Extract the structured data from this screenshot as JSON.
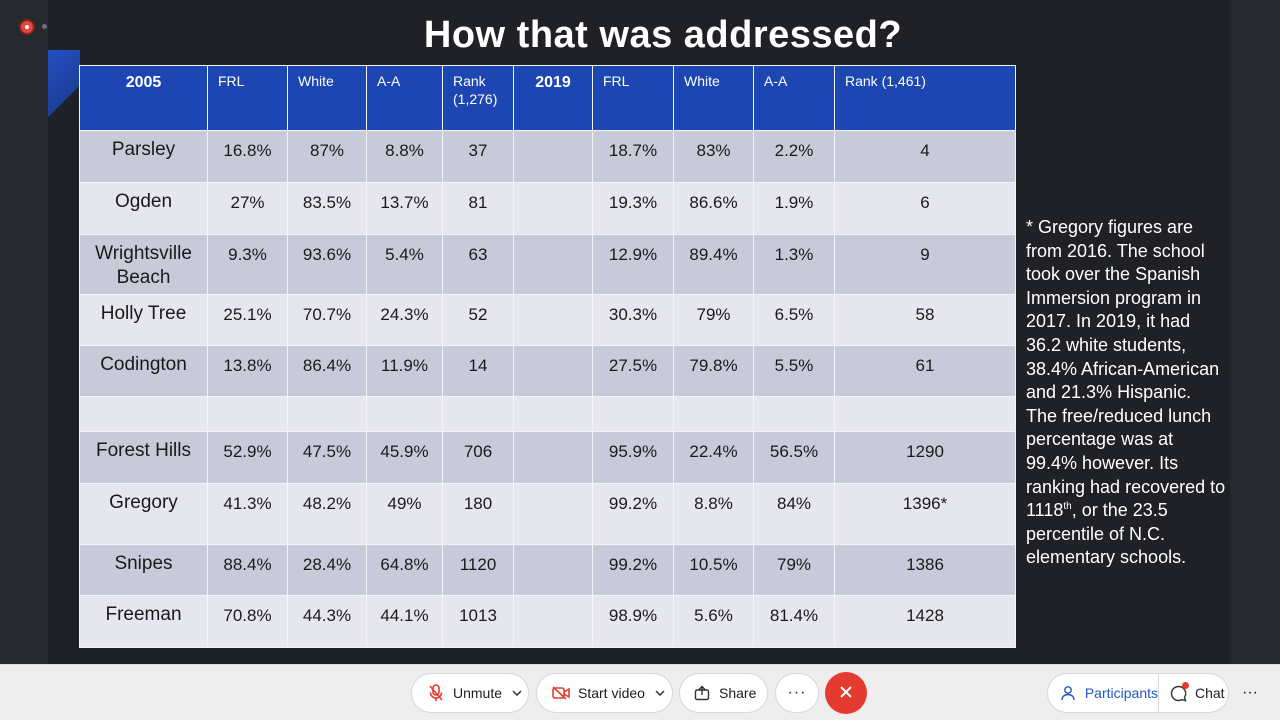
{
  "slide": {
    "title": "How that was addressed?",
    "table": {
      "headers": [
        "2005",
        "FRL",
        "White",
        "A-A",
        "Rank (1,276)",
        "2019",
        "FRL",
        "White",
        "A-A",
        "Rank (1,461)"
      ],
      "rows": [
        [
          "Parsley",
          "16.8%",
          "87%",
          "8.8%",
          "37",
          "",
          "18.7%",
          "83%",
          "2.2%",
          "4"
        ],
        [
          "Ogden",
          "27%",
          "83.5%",
          "13.7%",
          "81",
          "",
          "19.3%",
          "86.6%",
          "1.9%",
          "6"
        ],
        [
          "Wrightsville Beach",
          "9.3%",
          "93.6%",
          "5.4%",
          "63",
          "",
          "12.9%",
          "89.4%",
          "1.3%",
          "9"
        ],
        [
          "Holly Tree",
          "25.1%",
          "70.7%",
          "24.3%",
          "52",
          "",
          "30.3%",
          "79%",
          "6.5%",
          "58"
        ],
        [
          "Codington",
          "13.8%",
          "86.4%",
          "11.9%",
          "14",
          "",
          "27.5%",
          "79.8%",
          "5.5%",
          "61"
        ],
        [
          "",
          "",
          "",
          "",
          "",
          "",
          "",
          "",
          "",
          ""
        ],
        [
          "Forest Hills",
          "52.9%",
          "47.5%",
          "45.9%",
          "706",
          "",
          "95.9%",
          "22.4%",
          "56.5%",
          "1290"
        ],
        [
          "Gregory",
          "41.3%",
          "48.2%",
          "49%",
          "180",
          "",
          "99.2%",
          "8.8%",
          "84%",
          "1396*"
        ],
        [
          "Snipes",
          "88.4%",
          "28.4%",
          "64.8%",
          "1120",
          "",
          "99.2%",
          "10.5%",
          "79%",
          "1386"
        ],
        [
          "Freeman",
          "70.8%",
          "44.3%",
          "44.1%",
          "1013",
          "",
          "98.9%",
          "5.6%",
          "81.4%",
          "1428"
        ]
      ]
    },
    "note": {
      "text_before": "* Gregory figures are from 2016. The school took over the Spanish Immersion program in 2017. In 2019, it had 36.2 white students, 38.4% African-American and 21.3% Hispanic. The free/reduced lunch percentage was at 99.4% however. Its ranking had recovered to 1118",
      "superscript": "th",
      "text_after": ", or the 23.5 percentile of N.C. elementary schools."
    }
  },
  "toolbar": {
    "unmute_label": "Unmute",
    "start_video_label": "Start video",
    "share_label": "Share",
    "more_label": "···",
    "participants_label": "Participants",
    "chat_label": "Chat",
    "overflow_label": "···"
  },
  "colors": {
    "header_blue": "#1d46b3",
    "row_dark": "#c8cad9",
    "row_light": "#e5e6ee",
    "end_red": "#e53a2f",
    "participants_blue": "#2256c5"
  },
  "icons": [
    "recording-icon",
    "mic-muted-icon",
    "video-off-icon",
    "share-icon",
    "end-call-icon",
    "participants-icon",
    "chat-icon",
    "chevron-down-icon"
  ]
}
